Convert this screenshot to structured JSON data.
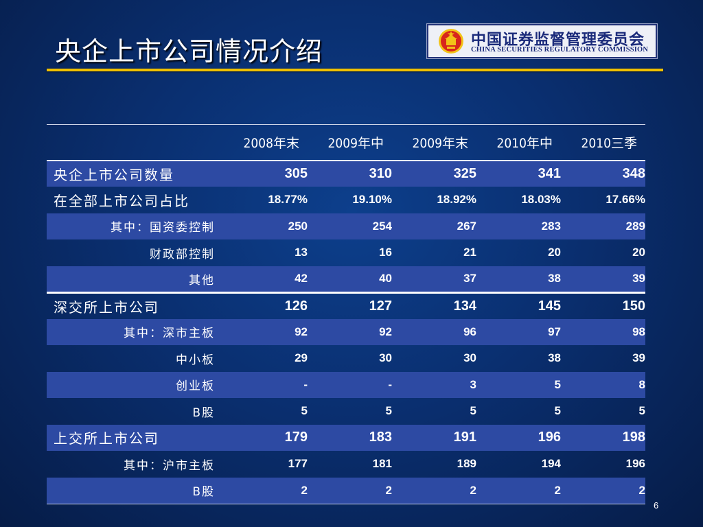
{
  "slide": {
    "title": "央企上市公司情况介绍",
    "page_number": "6"
  },
  "logo": {
    "cn": "中国证券监督管理委员会",
    "en": "CHINA SECURITIES REGULATORY COMMISSION",
    "emblem_colors": {
      "red": "#d8261c",
      "gold": "#f2c318"
    }
  },
  "table": {
    "columns": [
      "2008年末",
      "2009年中",
      "2009年末",
      "2010年中",
      "2010三季"
    ],
    "rows": [
      {
        "label": "央企上市公司数量",
        "values": [
          "305",
          "310",
          "325",
          "341",
          "348"
        ]
      },
      {
        "label": "在全部上市公司占比",
        "values": [
          "18.77%",
          "19.10%",
          "18.92%",
          "18.03%",
          "17.66%"
        ]
      },
      {
        "label": "其中：国资委控制",
        "values": [
          "250",
          "254",
          "267",
          "283",
          "289"
        ]
      },
      {
        "label": "财政部控制",
        "values": [
          "13",
          "16",
          "21",
          "20",
          "20"
        ]
      },
      {
        "label": "其他",
        "values": [
          "42",
          "40",
          "37",
          "38",
          "39"
        ]
      },
      {
        "label": "深交所上市公司",
        "values": [
          "126",
          "127",
          "134",
          "145",
          "150"
        ]
      },
      {
        "label": "其中：深市主板",
        "values": [
          "92",
          "92",
          "96",
          "97",
          "98"
        ]
      },
      {
        "label": "中小板",
        "values": [
          "29",
          "30",
          "30",
          "38",
          "39"
        ]
      },
      {
        "label": "创业板",
        "values": [
          "-",
          "-",
          "3",
          "5",
          "8"
        ]
      },
      {
        "label": "B股",
        "values": [
          "5",
          "5",
          "5",
          "5",
          "5"
        ]
      },
      {
        "label": "上交所上市公司",
        "values": [
          "179",
          "183",
          "191",
          "196",
          "198"
        ]
      },
      {
        "label": "其中：沪市主板",
        "values": [
          "177",
          "181",
          "189",
          "194",
          "196"
        ]
      },
      {
        "label": "B股",
        "values": [
          "2",
          "2",
          "2",
          "2",
          "2"
        ]
      }
    ]
  },
  "colors": {
    "background": "#0a2f70",
    "title_rule": "#f0c000",
    "alt_row": "#2d4aa3",
    "text": "#ffffff"
  }
}
